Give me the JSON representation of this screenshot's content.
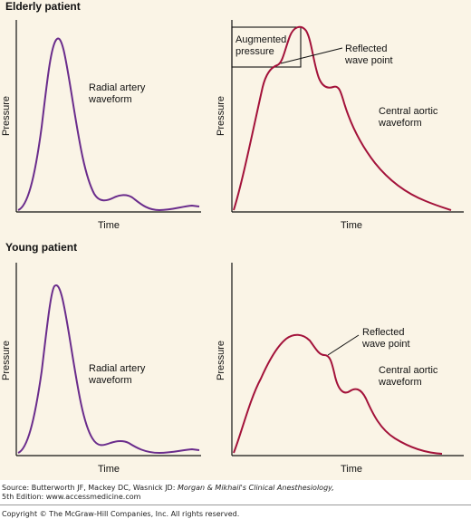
{
  "sections": {
    "elderly_title": "Elderly patient",
    "young_title": "Young patient"
  },
  "panels": {
    "elderly_radial": {
      "ylabel": "Pressure",
      "xlabel": "Time",
      "label_line1": "Radial artery",
      "label_line2": "waveform"
    },
    "elderly_aortic": {
      "ylabel": "Pressure",
      "xlabel": "Time",
      "label_line1": "Central aortic",
      "label_line2": "waveform",
      "augmented_line1": "Augmented",
      "augmented_line2": "pressure",
      "reflected_line1": "Reflected",
      "reflected_line2": "wave point"
    },
    "young_radial": {
      "ylabel": "Pressure",
      "xlabel": "Time",
      "label_line1": "Radial artery",
      "label_line2": "waveform"
    },
    "young_aortic": {
      "ylabel": "Pressure",
      "xlabel": "Time",
      "label_line1": "Central aortic",
      "label_line2": "waveform",
      "reflected_line1": "Reflected",
      "reflected_line2": "wave point"
    }
  },
  "colors": {
    "waveform_purple": "#6a2c8c",
    "waveform_red": "#a3123a",
    "axis": "#111111",
    "background": "#faf4e6"
  },
  "footer": {
    "source_prefix": "Source: Butterworth JF, Mackey DC, Wasnick JD: ",
    "source_title": "Morgan & Mikhail's Clinical Anesthesiology,",
    "source_line2": "5th Edition: www.accessmedicine.com",
    "copyright": "Copyright © The McGraw-Hill Companies, Inc. All rights reserved."
  }
}
